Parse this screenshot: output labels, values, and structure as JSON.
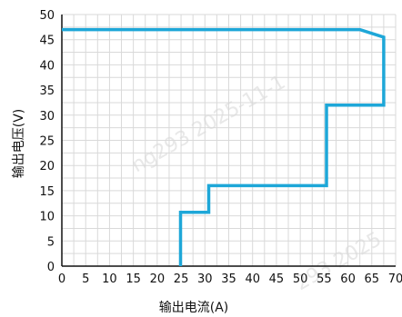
{
  "chart_data": {
    "type": "line",
    "title": "",
    "xlabel": "输出电流(A)",
    "ylabel": "输出电压(V)",
    "xlim": [
      0,
      70
    ],
    "ylim": [
      0,
      50
    ],
    "x_ticks": [
      0,
      5,
      10,
      15,
      20,
      25,
      30,
      35,
      40,
      45,
      50,
      55,
      60,
      65,
      70
    ],
    "y_ticks": [
      0,
      5,
      10,
      15,
      20,
      25,
      30,
      35,
      40,
      45,
      50
    ],
    "grid": true,
    "legend": "none",
    "series": [
      {
        "color": "#1ea7d8",
        "points": [
          [
            0,
            47
          ],
          [
            62.5,
            47
          ],
          [
            67.5,
            45.5
          ],
          [
            67.5,
            32
          ],
          [
            55.5,
            32
          ],
          [
            55.5,
            16
          ],
          [
            30.8,
            16
          ],
          [
            30.8,
            10.7
          ],
          [
            24.9,
            10.7
          ],
          [
            24.9,
            0
          ]
        ]
      }
    ],
    "watermark": [
      "ng293  2025-11-1",
      "293  2025"
    ]
  }
}
